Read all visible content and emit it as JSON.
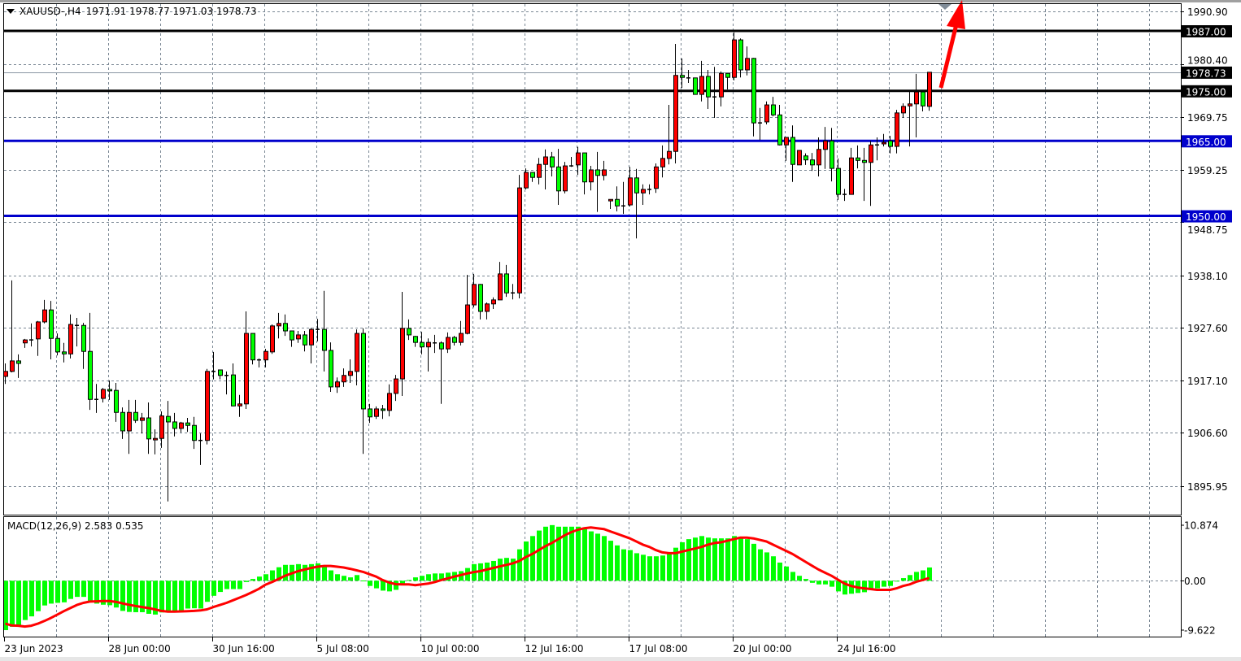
{
  "header": {
    "symbol": "XAUUSD-,H4",
    "ohlc": "1971.91 1978.77 1971.03 1978.73",
    "menu_icon": "triangle-down-icon"
  },
  "indicator": {
    "label": "MACD(12,26,9) 2.583 0.535"
  },
  "colors": {
    "bull": "#ff0000",
    "bear": "#00ff00",
    "grid": "#7a8794",
    "hist": "#00ff00",
    "signal": "#ff0000",
    "arrow": "#ff0000",
    "bid_line": "#8a96a3"
  },
  "annotations": {
    "arrow": {
      "direction": "up",
      "color": "#ff0000"
    },
    "shift_marker": "triangle-down-icon"
  },
  "chart_data": [
    {
      "type": "candlestick",
      "title": "XAUUSD-,H4",
      "timeframe": "H4",
      "ylim": [
        1892.0,
        1993.2
      ],
      "grid": true,
      "price_ticks": [
        "1990.90",
        "1980.40",
        "1969.75",
        "1959.25",
        "1948.75",
        "1938.10",
        "1927.60",
        "1917.10",
        "1906.60",
        "1895.95"
      ],
      "time_labels": [
        "23 Jun 2023",
        "28 Jun 00:00",
        "30 Jun 16:00",
        "5 Jul 08:00",
        "10 Jul 00:00",
        "12 Jul 16:00",
        "17 Jul 08:00",
        "20 Jul 00:00",
        "24 Jul 16:00"
      ],
      "bars_per_time_label": 16,
      "levels": [
        {
          "price": 1987.0,
          "label": "1987.00",
          "color": "#000000"
        },
        {
          "price": 1975.0,
          "label": "1975.00",
          "color": "#000000"
        },
        {
          "price": 1965.0,
          "label": "1965.00",
          "color": "#0000cc"
        },
        {
          "price": 1950.0,
          "label": "1950.00",
          "color": "#0000cc"
        }
      ],
      "bid": {
        "price": 1978.73,
        "label": "1978.73"
      },
      "candles_ohlc": [
        [
          1917.9,
          1920.5,
          1916.4,
          1918.9
        ],
        [
          1918.9,
          1937.1,
          1918.7,
          1921.0
        ],
        [
          1921.0,
          1922.3,
          1917.6,
          1920.5
        ],
        [
          1924.6,
          1925.4,
          1923.6,
          1925.2
        ],
        [
          1925.2,
          1928.5,
          1923.9,
          1925.2
        ],
        [
          1925.4,
          1929.0,
          1922.0,
          1928.8
        ],
        [
          1928.8,
          1933.2,
          1928.5,
          1931.2
        ],
        [
          1931.2,
          1933.0,
          1921.3,
          1925.5
        ],
        [
          1925.5,
          1926.5,
          1922.1,
          1922.8
        ],
        [
          1922.8,
          1924.6,
          1920.7,
          1922.4
        ],
        [
          1922.4,
          1930.3,
          1921.5,
          1928.3
        ],
        [
          1928.1,
          1929.6,
          1923.9,
          1928.1
        ],
        [
          1928.1,
          1928.6,
          1919.4,
          1922.9
        ],
        [
          1922.9,
          1930.6,
          1911.2,
          1913.3
        ],
        [
          1913.3,
          1916.4,
          1910.6,
          1913.3
        ],
        [
          1913.5,
          1915.6,
          1912.7,
          1915.3
        ],
        [
          1915.3,
          1917.1,
          1913.2,
          1915.0
        ],
        [
          1915.1,
          1916.6,
          1908.8,
          1910.7
        ],
        [
          1910.7,
          1911.7,
          1905.4,
          1907.0
        ],
        [
          1907.0,
          1913.2,
          1902.4,
          1910.7
        ],
        [
          1910.7,
          1913.2,
          1908.6,
          1909.1
        ],
        [
          1909.1,
          1910.6,
          1906.5,
          1909.6
        ],
        [
          1909.6,
          1912.7,
          1902.4,
          1905.4
        ],
        [
          1905.2,
          1907.3,
          1902.3,
          1905.5
        ],
        [
          1905.5,
          1910.9,
          1903.6,
          1910.0
        ],
        [
          1909.9,
          1913.0,
          1892.9,
          1908.8
        ],
        [
          1908.8,
          1910.6,
          1905.9,
          1907.5
        ],
        [
          1907.5,
          1908.8,
          1906.7,
          1908.6
        ],
        [
          1908.6,
          1909.6,
          1906.8,
          1908.1
        ],
        [
          1908.1,
          1909.8,
          1903.4,
          1905.1
        ],
        [
          1905.1,
          1906.5,
          1900.2,
          1905.1
        ],
        [
          1905.1,
          1919.4,
          1904.3,
          1918.9
        ],
        [
          1918.9,
          1922.8,
          1917.3,
          1918.9
        ],
        [
          1919.2,
          1919.2,
          1917.3,
          1918.1
        ],
        [
          1918.1,
          1918.9,
          1914.3,
          1918.1
        ],
        [
          1918.2,
          1920.5,
          1911.9,
          1912.0
        ],
        [
          1912.0,
          1914.2,
          1909.8,
          1912.4
        ],
        [
          1912.4,
          1930.9,
          1911.4,
          1926.5
        ],
        [
          1926.5,
          1926.5,
          1920.3,
          1921.2
        ],
        [
          1921.2,
          1921.5,
          1919.7,
          1921.2
        ],
        [
          1921.2,
          1923.4,
          1919.7,
          1922.9
        ],
        [
          1922.8,
          1928.3,
          1922.4,
          1928.0
        ],
        [
          1928.0,
          1930.6,
          1925.5,
          1928.5
        ],
        [
          1928.5,
          1930.3,
          1926.0,
          1927.0
        ],
        [
          1927.0,
          1927.0,
          1923.8,
          1925.2
        ],
        [
          1925.4,
          1927.0,
          1924.6,
          1926.2
        ],
        [
          1926.2,
          1927.0,
          1922.9,
          1924.2
        ],
        [
          1924.2,
          1927.6,
          1920.5,
          1927.3
        ],
        [
          1927.3,
          1929.4,
          1924.9,
          1927.3
        ],
        [
          1927.3,
          1935.0,
          1918.9,
          1923.1
        ],
        [
          1923.1,
          1924.7,
          1914.8,
          1915.8
        ],
        [
          1915.8,
          1917.7,
          1914.6,
          1916.8
        ],
        [
          1916.8,
          1919.5,
          1915.8,
          1918.1
        ],
        [
          1918.1,
          1921.3,
          1916.6,
          1918.9
        ],
        [
          1918.9,
          1927.3,
          1916.1,
          1926.5
        ],
        [
          1926.5,
          1927.5,
          1902.4,
          1911.4
        ],
        [
          1911.4,
          1912.4,
          1908.6,
          1909.8
        ],
        [
          1909.9,
          1911.9,
          1909.4,
          1911.4
        ],
        [
          1911.4,
          1912.2,
          1909.4,
          1911.1
        ],
        [
          1911.1,
          1916.3,
          1909.9,
          1914.5
        ],
        [
          1914.5,
          1918.2,
          1913.0,
          1917.4
        ],
        [
          1917.4,
          1934.8,
          1914.0,
          1927.5
        ],
        [
          1927.5,
          1929.3,
          1925.2,
          1926.2
        ],
        [
          1925.9,
          1926.0,
          1923.8,
          1924.7
        ],
        [
          1924.7,
          1926.8,
          1922.3,
          1923.8
        ],
        [
          1923.8,
          1925.5,
          1918.9,
          1924.7
        ],
        [
          1924.6,
          1926.2,
          1922.6,
          1924.6
        ],
        [
          1924.6,
          1924.9,
          1912.4,
          1923.4
        ],
        [
          1923.4,
          1926.7,
          1922.6,
          1925.7
        ],
        [
          1925.7,
          1926.0,
          1924.1,
          1924.7
        ],
        [
          1924.7,
          1929.0,
          1924.1,
          1926.5
        ],
        [
          1926.5,
          1938.2,
          1926.3,
          1932.2
        ],
        [
          1932.2,
          1938.4,
          1931.7,
          1936.3
        ],
        [
          1936.3,
          1936.4,
          1929.3,
          1930.9
        ],
        [
          1930.9,
          1932.7,
          1929.3,
          1932.4
        ],
        [
          1932.4,
          1933.7,
          1931.4,
          1933.2
        ],
        [
          1933.2,
          1940.8,
          1933.2,
          1938.4
        ],
        [
          1938.4,
          1940.2,
          1933.8,
          1934.6
        ],
        [
          1934.6,
          1936.4,
          1933.3,
          1934.6
        ],
        [
          1934.6,
          1958.2,
          1933.5,
          1955.6
        ],
        [
          1955.6,
          1959.5,
          1955.3,
          1958.7
        ],
        [
          1958.7,
          1958.7,
          1956.8,
          1957.7
        ],
        [
          1957.7,
          1961.6,
          1956.3,
          1960.3
        ],
        [
          1960.3,
          1963.3,
          1955.3,
          1961.8
        ],
        [
          1961.8,
          1962.8,
          1957.9,
          1959.8
        ],
        [
          1959.8,
          1963.4,
          1952.2,
          1955.0
        ],
        [
          1955.0,
          1960.8,
          1954.5,
          1960.0
        ],
        [
          1960.0,
          1961.8,
          1959.8,
          1960.0
        ],
        [
          1960.2,
          1963.8,
          1958.2,
          1962.6
        ],
        [
          1962.6,
          1962.6,
          1954.3,
          1956.8
        ],
        [
          1956.8,
          1960.0,
          1955.1,
          1959.2
        ],
        [
          1959.2,
          1962.8,
          1950.8,
          1958.1
        ],
        [
          1958.1,
          1961.0,
          1957.1,
          1959.2
        ],
        [
          1953.0,
          1953.3,
          1951.4,
          1953.3
        ],
        [
          1953.3,
          1955.9,
          1950.9,
          1952.0
        ],
        [
          1952.0,
          1956.8,
          1950.4,
          1952.0
        ],
        [
          1952.2,
          1959.8,
          1951.9,
          1957.6
        ],
        [
          1957.6,
          1959.4,
          1945.5,
          1954.6
        ],
        [
          1954.6,
          1956.3,
          1952.2,
          1955.3
        ],
        [
          1955.3,
          1956.3,
          1954.3,
          1955.3
        ],
        [
          1955.5,
          1960.5,
          1954.6,
          1959.8
        ],
        [
          1959.8,
          1964.1,
          1957.7,
          1961.5
        ],
        [
          1961.5,
          1972.2,
          1960.3,
          1962.9
        ],
        [
          1962.9,
          1984.4,
          1960.5,
          1978.1
        ],
        [
          1978.1,
          1981.5,
          1975.6,
          1977.7
        ],
        [
          1977.6,
          1979.2,
          1976.6,
          1977.6
        ],
        [
          1977.6,
          1977.6,
          1974.3,
          1974.3
        ],
        [
          1974.3,
          1981.0,
          1972.9,
          1977.9
        ],
        [
          1977.9,
          1979.2,
          1971.4,
          1973.8
        ],
        [
          1973.8,
          1979.8,
          1969.6,
          1973.8
        ],
        [
          1973.8,
          1978.9,
          1971.9,
          1978.5
        ],
        [
          1978.5,
          1978.5,
          1975.3,
          1977.7
        ],
        [
          1977.7,
          1986.7,
          1977.1,
          1985.2
        ],
        [
          1985.2,
          1985.5,
          1977.7,
          1979.2
        ],
        [
          1979.2,
          1983.9,
          1978.1,
          1981.5
        ],
        [
          1981.5,
          1981.6,
          1965.9,
          1968.6
        ],
        [
          1968.6,
          1971.6,
          1965.2,
          1968.6
        ],
        [
          1968.8,
          1972.9,
          1968.3,
          1972.2
        ],
        [
          1972.2,
          1973.8,
          1969.9,
          1970.2
        ],
        [
          1970.2,
          1972.2,
          1964.1,
          1964.2
        ],
        [
          1964.2,
          1965.7,
          1961.0,
          1965.7
        ],
        [
          1965.7,
          1968.1,
          1956.8,
          1960.3
        ],
        [
          1960.2,
          1963.1,
          1960.2,
          1963.1
        ],
        [
          1962.0,
          1962.5,
          1960.2,
          1961.2
        ],
        [
          1961.2,
          1962.6,
          1959.0,
          1960.2
        ],
        [
          1960.2,
          1965.7,
          1957.9,
          1963.3
        ],
        [
          1963.3,
          1967.8,
          1959.4,
          1965.0
        ],
        [
          1965.0,
          1967.6,
          1956.9,
          1959.5
        ],
        [
          1959.5,
          1961.5,
          1953.2,
          1954.3
        ],
        [
          1954.3,
          1955.4,
          1953.0,
          1954.3
        ],
        [
          1954.3,
          1963.6,
          1954.3,
          1961.6
        ],
        [
          1961.6,
          1964.1,
          1959.5,
          1961.1
        ],
        [
          1961.1,
          1963.6,
          1953.0,
          1960.7
        ],
        [
          1960.7,
          1965.0,
          1952.0,
          1964.2
        ],
        [
          1964.2,
          1965.7,
          1961.1,
          1964.2
        ],
        [
          1964.4,
          1966.4,
          1963.9,
          1964.7
        ],
        [
          1965.0,
          1966.0,
          1962.5,
          1963.9
        ],
        [
          1963.9,
          1971.2,
          1962.5,
          1970.6
        ],
        [
          1970.6,
          1972.5,
          1969.6,
          1971.9
        ],
        [
          1972.0,
          1974.8,
          1963.9,
          1972.4
        ],
        [
          1972.4,
          1978.4,
          1965.7,
          1974.8
        ],
        [
          1974.8,
          1974.8,
          1970.9,
          1972.0
        ],
        [
          1971.91,
          1978.77,
          1971.03,
          1978.73
        ]
      ]
    },
    {
      "type": "bar",
      "title": "MACD(12,26,9)",
      "ylim": [
        -9.622,
        10.874
      ],
      "y_ticks": [
        "10.874",
        "0.00",
        "-9.622"
      ],
      "main_value": 2.583,
      "signal_value": 0.535,
      "histogram": [
        -9.61,
        -8.96,
        -8.6,
        -7.64,
        -6.93,
        -5.92,
        -4.81,
        -4.45,
        -4.3,
        -4.2,
        -3.54,
        -3.14,
        -3.14,
        -3.9,
        -4.45,
        -4.66,
        -4.76,
        -5.21,
        -5.87,
        -6.07,
        -6.12,
        -6.12,
        -6.43,
        -6.58,
        -6.17,
        -5.92,
        -5.97,
        -5.87,
        -5.41,
        -5.36,
        -5.41,
        -4.1,
        -2.93,
        -2.18,
        -1.62,
        -1.62,
        -1.62,
        -0.25,
        0.35,
        0.81,
        1.27,
        2.02,
        2.63,
        3.09,
        3.09,
        3.24,
        3.09,
        3.24,
        3.39,
        2.68,
        2.02,
        1.27,
        0.96,
        0.66,
        1.11,
        0.05,
        -1.01,
        -1.47,
        -1.92,
        -2.07,
        -1.77,
        -0.51,
        0.15,
        0.66,
        0.96,
        1.27,
        1.42,
        1.42,
        1.57,
        1.72,
        1.87,
        2.48,
        3.24,
        3.39,
        3.54,
        3.85,
        4.3,
        4.45,
        4.3,
        6.12,
        7.64,
        8.7,
        9.77,
        10.52,
        10.83,
        10.52,
        10.52,
        10.52,
        10.52,
        10.07,
        9.61,
        9.16,
        8.7,
        7.79,
        6.88,
        6.12,
        5.97,
        5.36,
        5.06,
        4.76,
        4.76,
        4.91,
        5.21,
        6.43,
        7.49,
        8.1,
        8.4,
        8.7,
        8.4,
        8.25,
        8.25,
        8.25,
        8.7,
        8.4,
        8.1,
        7.19,
        6.12,
        5.52,
        4.76,
        3.54,
        2.78,
        1.72,
        0.96,
        0.35,
        -0.4,
        -0.71,
        -0.71,
        -1.16,
        -2.07,
        -2.68,
        -2.53,
        -2.38,
        -2.23,
        -1.77,
        -1.47,
        -1.16,
        -1.01,
        -0.15,
        0.51,
        1.11,
        1.72,
        2.02,
        2.583
      ],
      "signal": [
        -8.35,
        -8.7,
        -8.75,
        -8.91,
        -8.75,
        -8.35,
        -7.84,
        -7.24,
        -6.58,
        -5.92,
        -5.31,
        -4.71,
        -4.3,
        -4.05,
        -4.0,
        -3.95,
        -3.95,
        -4.1,
        -4.4,
        -4.66,
        -4.91,
        -5.11,
        -5.31,
        -5.57,
        -5.87,
        -6.02,
        -6.02,
        -5.97,
        -5.92,
        -5.87,
        -5.77,
        -5.57,
        -5.11,
        -4.71,
        -4.3,
        -3.8,
        -3.29,
        -2.78,
        -2.18,
        -1.57,
        -0.76,
        -0.25,
        0.35,
        0.96,
        1.42,
        1.87,
        2.18,
        2.48,
        2.73,
        2.88,
        2.88,
        2.73,
        2.58,
        2.33,
        2.02,
        1.72,
        1.27,
        0.81,
        0.15,
        -0.35,
        -0.66,
        -0.71,
        -0.71,
        -0.86,
        -0.71,
        -0.56,
        -0.25,
        0.15,
        0.46,
        0.81,
        1.11,
        1.42,
        1.67,
        1.87,
        2.18,
        2.48,
        2.78,
        3.09,
        3.39,
        3.85,
        4.6,
        5.21,
        5.97,
        6.73,
        7.34,
        8.1,
        8.86,
        9.46,
        9.92,
        10.22,
        10.37,
        10.22,
        10.07,
        9.61,
        9.16,
        8.7,
        8.25,
        7.64,
        7.03,
        6.58,
        5.97,
        5.52,
        5.36,
        5.36,
        5.67,
        5.97,
        6.27,
        6.58,
        7.03,
        7.34,
        7.49,
        7.79,
        8.1,
        8.4,
        8.4,
        8.25,
        7.94,
        7.64,
        7.03,
        6.43,
        5.82,
        5.21,
        4.45,
        3.69,
        2.93,
        2.18,
        1.57,
        0.96,
        0.2,
        -0.56,
        -1.01,
        -1.32,
        -1.47,
        -1.62,
        -1.77,
        -1.77,
        -1.77,
        -1.47,
        -1.01,
        -0.71,
        -0.2,
        0.15,
        0.535
      ]
    }
  ]
}
